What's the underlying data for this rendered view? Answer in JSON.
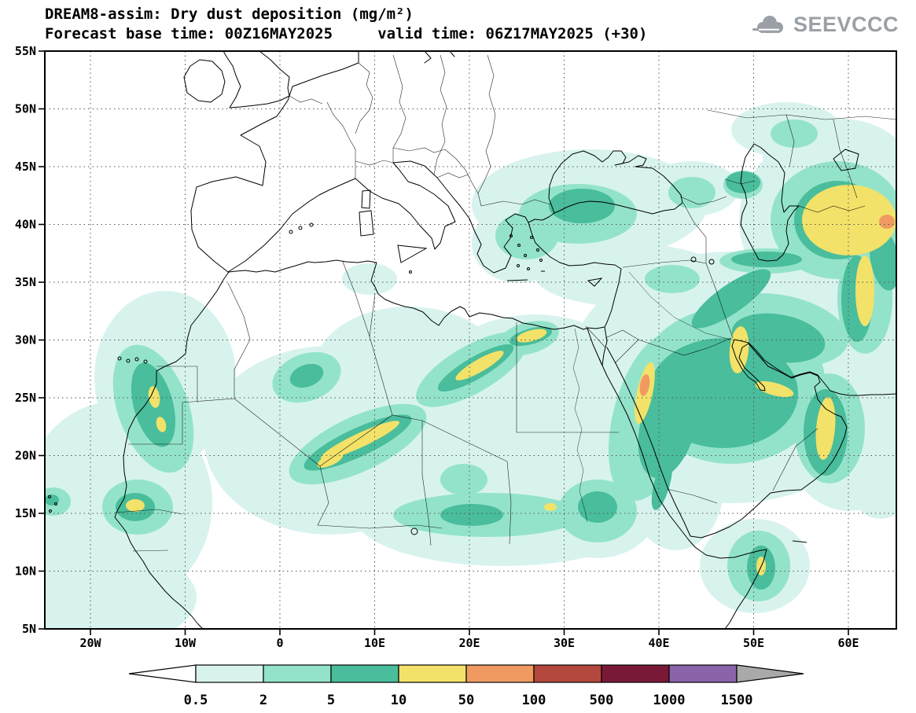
{
  "header": {
    "title_line1": "DREAM8-assim: Dry dust deposition (mg/m²)",
    "title_line2": "Forecast base time: 00Z16MAY2025     valid time: 06Z17MAY2025 (+30)",
    "logo_text": "SEEVCCC"
  },
  "map": {
    "x_ticks": [
      "20W",
      "10W",
      "0",
      "10E",
      "20E",
      "30E",
      "40E",
      "50E",
      "60E"
    ],
    "y_ticks": [
      "55N",
      "50N",
      "45N",
      "40N",
      "35N",
      "30N",
      "25N",
      "20N",
      "15N",
      "10N",
      "5N"
    ]
  },
  "legend": {
    "labels": [
      "0.5",
      "2",
      "5",
      "10",
      "50",
      "100",
      "500",
      "1000",
      "1500"
    ],
    "colors": [
      "#ffffff",
      "#d8f3ee",
      "#93e3ca",
      "#49bd9c",
      "#f2e269",
      "#f09a62",
      "#b4483e",
      "#7a1838",
      "#8a63a8",
      "#a9a9a9"
    ]
  },
  "chart_data": {
    "type": "heatmap",
    "subtype": "filled-contour geographic forecast map",
    "title": "DREAM8-assim: Dry dust deposition (mg/m²)",
    "model": "DREAM8-assim",
    "variable": "Dry dust deposition",
    "units": "mg/m²",
    "forecast_base_time": "00Z16MAY2025",
    "valid_time": "06Z17MAY2025",
    "lead_time_hours": 30,
    "region": "North Africa, Europe, Middle East (approx 25W-65E, 5N-55N)",
    "x_axis": {
      "ticks": [
        "20W",
        "10W",
        "0",
        "10E",
        "20E",
        "30E",
        "40E",
        "50E",
        "60E"
      ],
      "range": [
        "25W",
        "65E"
      ]
    },
    "y_axis": {
      "ticks": [
        "55N",
        "50N",
        "45N",
        "40N",
        "35N",
        "30N",
        "25N",
        "20N",
        "15N",
        "10N",
        "5N"
      ],
      "range": [
        "5N",
        "55N"
      ]
    },
    "graticule": "dotted grid every 5 degrees",
    "contour_levels": [
      0.5,
      2,
      5,
      10,
      50,
      100,
      500,
      1000,
      1500
    ],
    "level_colors": [
      "#ffffff",
      "#d8f3ee",
      "#93e3ca",
      "#49bd9c",
      "#f2e269",
      "#f09a62",
      "#b4483e",
      "#7a1838",
      "#8a63a8",
      "#a9a9a9"
    ],
    "legend_orientation": "horizontal-bottom",
    "notable_features": [
      {
        "area": "Atlantic off Senegal-Mauritania",
        "approx_lon": -16,
        "approx_lat": 18,
        "max_band": "10-50"
      },
      {
        "area": "Sahel band Mali-Niger",
        "approx_lon": 3,
        "approx_lat": 19,
        "max_band": "10-50"
      },
      {
        "area": "Central Algeria to SW Libya streak",
        "approx_lon": 15,
        "approx_lat": 27,
        "max_band": "10-50"
      },
      {
        "area": "NW Egypt",
        "approx_lon": 27,
        "approx_lat": 30,
        "max_band": "10-50"
      },
      {
        "area": "Red Sea coast Sudan/Saudi border",
        "approx_lon": 38,
        "approx_lat": 23,
        "max_band": "50-100"
      },
      {
        "area": "Persian Gulf west coast",
        "approx_lon": 48.5,
        "approx_lat": 27,
        "max_band": "10-50"
      },
      {
        "area": "UAE/Oman coast",
        "approx_lon": 56,
        "approx_lat": 23,
        "max_band": "10-50"
      },
      {
        "area": "Central Saudi Arabia",
        "approx_lon": 45,
        "approx_lat": 23,
        "max_band": "5-10"
      },
      {
        "area": "Karakum/Kyzylkum Turkmenistan-Uzbekistan",
        "approx_lon": 60,
        "approx_lat": 40,
        "max_band": "50-100"
      },
      {
        "area": "Aegean/Marmara",
        "approx_lon": 27,
        "approx_lat": 40,
        "max_band": "5-10"
      },
      {
        "area": "NE Somalia Horn of Africa",
        "approx_lon": 50,
        "approx_lat": 10,
        "max_band": "10-50"
      }
    ]
  }
}
